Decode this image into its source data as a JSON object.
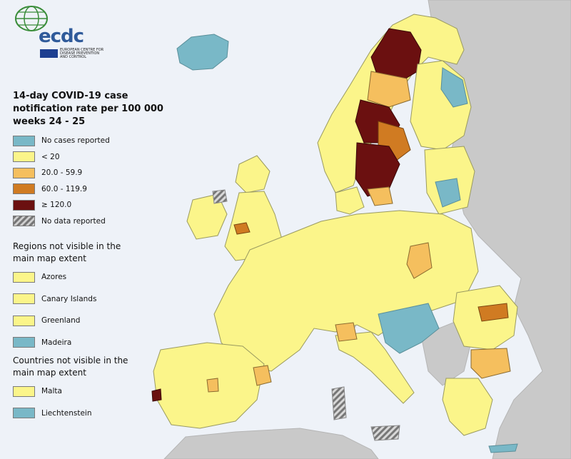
{
  "logo": {
    "word": "ecdc",
    "subtitle": "EUROPEAN CENTRE FOR DISEASE PREVENTION AND CONTROL"
  },
  "legend": {
    "title": "14-day COVID-19 case notification rate per 100 000 weeks 24 - 25",
    "items": [
      {
        "label": "No cases reported",
        "color": "#79b8c7"
      },
      {
        "label": "< 20",
        "color": "#fbf58a"
      },
      {
        "label": "20.0 - 59.9",
        "color": "#f5bf5e"
      },
      {
        "label": "60.0 - 119.9",
        "color": "#d07b22"
      },
      {
        "label": "≥ 120.0",
        "color": "#6b1010"
      },
      {
        "label": "No data reported",
        "color": "hatched-grey"
      }
    ]
  },
  "regions_not_visible": {
    "title": "Regions not visible in the main map extent",
    "items": [
      {
        "label": "Azores",
        "color": "#fbf58a"
      },
      {
        "label": "Canary Islands",
        "color": "#fbf58a"
      },
      {
        "label": "Greenland",
        "color": "#fbf58a"
      },
      {
        "label": "Madeira",
        "color": "#79b8c7"
      }
    ]
  },
  "countries_not_visible": {
    "title": "Countries not visible in the main map extent",
    "items": [
      {
        "label": "Malta",
        "color": "#fbf58a"
      },
      {
        "label": "Liechtenstein",
        "color": "#79b8c7"
      }
    ]
  },
  "colors": {
    "sea": "#eef2f8",
    "non_eu_land": "#c9c9c9",
    "border": "#8a8a70"
  }
}
